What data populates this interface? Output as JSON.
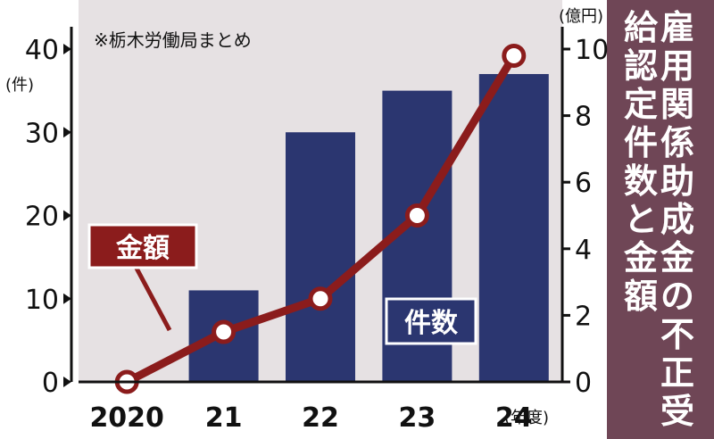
{
  "chart_data": {
    "type": "bar",
    "title": "雇用関係助成金の不正受給認定件数と金額",
    "source_note": "※栃木労働局まとめ",
    "categories": [
      "2020",
      "21",
      "22",
      "23",
      "24"
    ],
    "x_unit": "(年度)",
    "series": [
      {
        "name": "件数",
        "chart_type": "bar",
        "axis": "left",
        "values": [
          0,
          11,
          30,
          35,
          37
        ]
      },
      {
        "name": "金額",
        "chart_type": "line",
        "axis": "right",
        "values": [
          0,
          1.5,
          2.5,
          5,
          9.8
        ]
      }
    ],
    "left_axis": {
      "unit": "(件)",
      "ylim": [
        0,
        40
      ],
      "ticks": [
        "0",
        "10",
        "20",
        "30",
        "40"
      ]
    },
    "right_axis": {
      "unit": "(億円)",
      "ylim": [
        0,
        10
      ],
      "ticks": [
        "0",
        "2",
        "4",
        "6",
        "8",
        "10"
      ]
    },
    "grid": false,
    "colors": {
      "bar": "#2b3670",
      "line": "#8b1c1c",
      "plot_background": "#e6e1e3",
      "side_panel": "#6f4656",
      "label_text_light": "#ffffff"
    }
  }
}
